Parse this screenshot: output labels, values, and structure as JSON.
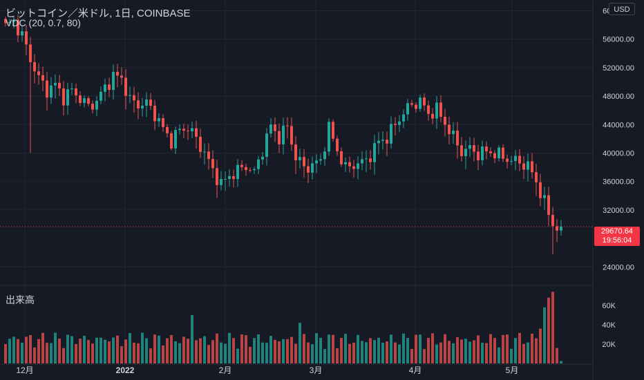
{
  "header": {
    "title": "ビットコイン／米ドル, 1日, COINBASE",
    "indicator": "VDC (20, 0.7, 80)",
    "currency": "USD"
  },
  "volume_pane": {
    "label": "出来高"
  },
  "last_price": {
    "price": "29670.64",
    "countdown": "19:56:04"
  },
  "colors": {
    "up": "#26a69a",
    "down": "#ef5350",
    "background": "#161a25",
    "grid": "#232632",
    "text": "#d1d4dc",
    "price_tag": "#f23645"
  },
  "chart_data": [
    {
      "type": "candlestick",
      "ylim": [
        21500,
        61500
      ],
      "yticks": [
        "60000.00",
        "56000.00",
        "52000.00",
        "48000.00",
        "44000.00",
        "40000.00",
        "36000.00",
        "32000.00",
        "24000.00"
      ],
      "xticks": [
        "12月",
        "2022",
        "2月",
        "3月",
        "4月",
        "5月"
      ],
      "last": 29670.64,
      "anchors": [
        [
          0,
          57800
        ],
        [
          2,
          58500
        ],
        [
          4,
          56500
        ],
        [
          6,
          53200
        ],
        [
          8,
          50500
        ],
        [
          10,
          48800
        ],
        [
          12,
          49600
        ],
        [
          14,
          47800
        ],
        [
          16,
          48800
        ],
        [
          18,
          47700
        ],
        [
          20,
          46500
        ],
        [
          22,
          47300
        ],
        [
          24,
          49200
        ],
        [
          26,
          50800
        ],
        [
          28,
          50500
        ],
        [
          30,
          47400
        ],
        [
          32,
          46800
        ],
        [
          34,
          47000
        ],
        [
          36,
          45500
        ],
        [
          38,
          43400
        ],
        [
          40,
          41700
        ],
        [
          42,
          43200
        ],
        [
          44,
          43600
        ],
        [
          46,
          42000
        ],
        [
          48,
          40000
        ],
        [
          50,
          37600
        ],
        [
          52,
          35600
        ],
        [
          54,
          36800
        ],
        [
          56,
          37500
        ],
        [
          58,
          38200
        ],
        [
          60,
          37200
        ],
        [
          62,
          40500
        ],
        [
          64,
          43800
        ],
        [
          66,
          42200
        ],
        [
          68,
          43700
        ],
        [
          70,
          39400
        ],
        [
          72,
          38000
        ],
        [
          74,
          38200
        ],
        [
          76,
          39000
        ],
        [
          78,
          43500
        ],
        [
          80,
          40400
        ],
        [
          82,
          37800
        ],
        [
          84,
          38400
        ],
        [
          86,
          38600
        ],
        [
          88,
          39700
        ],
        [
          90,
          41600
        ],
        [
          92,
          42200
        ],
        [
          94,
          44000
        ],
        [
          96,
          45700
        ],
        [
          98,
          46800
        ],
        [
          100,
          47300
        ],
        [
          102,
          45500
        ],
        [
          104,
          46100
        ],
        [
          106,
          44200
        ],
        [
          108,
          42200
        ],
        [
          110,
          40200
        ],
        [
          112,
          40600
        ],
        [
          114,
          39900
        ],
        [
          116,
          40200
        ],
        [
          118,
          40000
        ],
        [
          120,
          39400
        ],
        [
          122,
          39000
        ],
        [
          124,
          38700
        ],
        [
          126,
          38200
        ],
        [
          128,
          36000
        ],
        [
          130,
          33000
        ],
        [
          132,
          30000
        ],
        [
          133,
          29500
        ],
        [
          134,
          29700
        ]
      ],
      "volume_ylim": [
        0,
        80000
      ],
      "volume_ticks": [
        "60K",
        "40K",
        "20K"
      ]
    }
  ]
}
